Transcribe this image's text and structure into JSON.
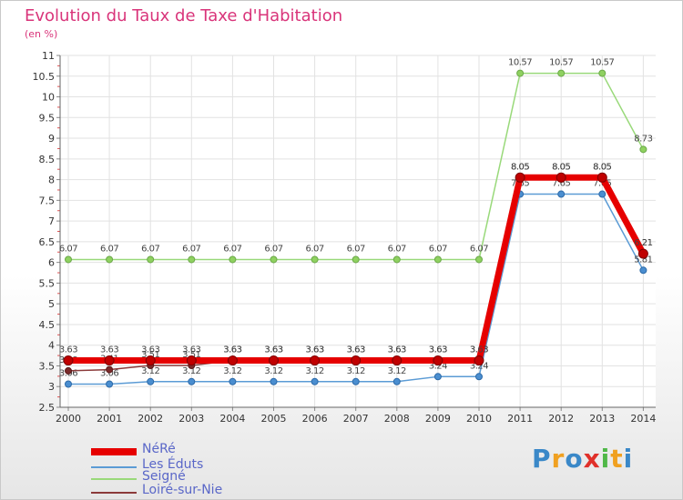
{
  "chart_data": {
    "type": "line",
    "title": "Evolution du Taux de Taxe d'Habitation",
    "subtitle": "(en %)",
    "xlabel": "",
    "ylabel": "",
    "ylim": [
      2.5,
      11
    ],
    "yticks": [
      "2.5",
      "3",
      "3.5",
      "4",
      "4.5",
      "5",
      "5.5",
      "6",
      "6.5",
      "7",
      "7.5",
      "8",
      "8.5",
      "9",
      "9.5",
      "10",
      "10.5",
      "11"
    ],
    "categories": [
      "2000",
      "2001",
      "2002",
      "2003",
      "2004",
      "2005",
      "2006",
      "2007",
      "2008",
      "2009",
      "2010",
      "2011",
      "2012",
      "2013",
      "2014"
    ],
    "series": [
      {
        "name": "Seigné",
        "color": "#99d97a",
        "values": [
          6.07,
          6.07,
          6.07,
          6.07,
          6.07,
          6.07,
          6.07,
          6.07,
          6.07,
          6.07,
          6.07,
          10.57,
          10.57,
          10.57,
          8.73
        ],
        "labels": [
          "6.07",
          "6.07",
          "6.07",
          "6.07",
          "6.07",
          "6.07",
          "6.07",
          "6.07",
          "6.07",
          "6.07",
          "6.07",
          "10.57",
          "10.57",
          "10.57",
          "8.73"
        ]
      },
      {
        "name": "Les Éduts",
        "color": "#5b9bd5",
        "values": [
          3.06,
          3.06,
          3.12,
          3.12,
          3.12,
          3.12,
          3.12,
          3.12,
          3.12,
          3.24,
          3.24,
          7.65,
          7.65,
          7.65,
          5.81
        ],
        "labels": [
          "3.06",
          "3.06",
          "3.12",
          "3.12",
          "3.12",
          "3.12",
          "3.12",
          "3.12",
          "3.12",
          "3.24",
          "3.24",
          "7.65",
          "7.65",
          "7.65",
          "5.81"
        ]
      },
      {
        "name": "Loiré-sur-Nie",
        "color": "#8b3a3a",
        "values": [
          3.38,
          3.41,
          3.51,
          3.51,
          3.63,
          3.63,
          3.63,
          3.63,
          3.63,
          3.63,
          3.63,
          8.05,
          8.05,
          8.05,
          6.21
        ],
        "labels": [
          "3.38",
          "3.41",
          "3.51",
          "3.51",
          "3.63",
          "3.63",
          "3.63",
          "3.63",
          "3.63",
          "3.63",
          "3.63",
          "8.05",
          "8.05",
          "8.05",
          "6.21"
        ]
      },
      {
        "name": "NéRé",
        "color": "#e60000",
        "values": [
          3.63,
          3.63,
          3.63,
          3.63,
          3.63,
          3.63,
          3.63,
          3.63,
          3.63,
          3.63,
          3.63,
          8.05,
          8.05,
          8.05,
          6.21
        ],
        "labels": [
          "3.63",
          "3.63",
          "3.63",
          "3.63",
          "3.63",
          "3.63",
          "3.63",
          "3.63",
          "3.63",
          "3.63",
          "3.63",
          "8.05",
          "8.05",
          "8.05",
          "6.21"
        ]
      }
    ],
    "legend": [
      "NéRé",
      "Les Éduts",
      "Seigné",
      "Loiré-sur-Nie"
    ]
  },
  "logo": {
    "letters": [
      "P",
      "r",
      "o",
      "x",
      "i",
      "t",
      "i"
    ],
    "colors": [
      "#3a88c8",
      "#f0a020",
      "#3a88c8",
      "#e0302a",
      "#50b848",
      "#f0a020",
      "#3a88c8"
    ]
  }
}
